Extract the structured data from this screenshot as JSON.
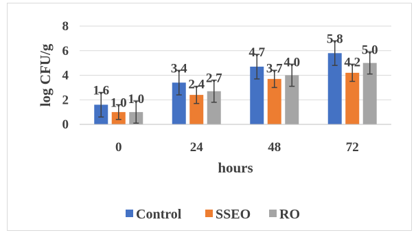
{
  "chart_data": {
    "type": "bar",
    "title": "",
    "xlabel": "hours",
    "ylabel": "log CFU/g",
    "categories": [
      "0",
      "24",
      "48",
      "72"
    ],
    "ylim": [
      0,
      8
    ],
    "yticks": [
      "0",
      "2",
      "4",
      "6",
      "8"
    ],
    "grid": true,
    "legend_position": "bottom",
    "series": [
      {
        "name": "Control",
        "color": "#4472c4",
        "values": [
          1.6,
          3.4,
          4.7,
          5.8
        ],
        "labels": [
          "1.6",
          "3.4",
          "4.7",
          "5.8"
        ],
        "error": [
          1.0,
          1.0,
          1.0,
          1.0
        ]
      },
      {
        "name": "SSEO",
        "color": "#ed7d31",
        "values": [
          1.0,
          2.4,
          3.7,
          4.2
        ],
        "labels": [
          "1.0",
          "2.4",
          "3.7",
          "4.2"
        ],
        "error": [
          0.6,
          0.7,
          0.7,
          0.7
        ]
      },
      {
        "name": "RO",
        "color": "#a5a5a5",
        "values": [
          1.0,
          2.7,
          4.0,
          5.0
        ],
        "labels": [
          "1.0",
          "2.7",
          "4.0",
          "5.0"
        ],
        "error": [
          0.9,
          0.9,
          0.9,
          0.9
        ]
      }
    ]
  }
}
